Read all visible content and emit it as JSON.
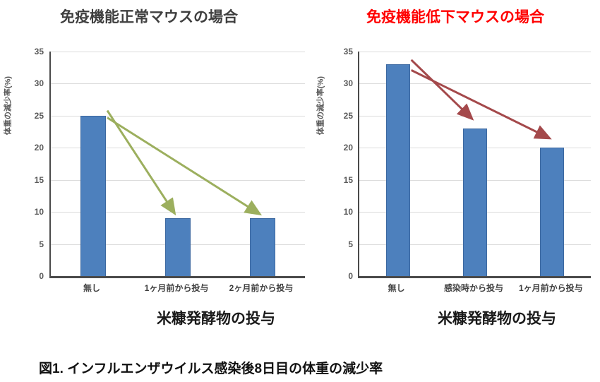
{
  "figure": {
    "caption": "図1. インフルエンザウイルス感染後8日目の体重の減少率"
  },
  "colors": {
    "bar": "#4D80BD",
    "grid": "#DCDCDC",
    "axis": "#4A4A4A",
    "tick_text": "#595959",
    "arrow_normal": "#9CAF5E",
    "arrow_low": "#A4494B",
    "title_normal": "#3F3F3F",
    "title_low": "#FF0000"
  },
  "chart_data": [
    {
      "type": "bar",
      "title": "免疫機能正常マウスの場合",
      "title_color": "#3F3F3F",
      "ylabel": "体重の減少率(%)",
      "xlabel": "米糠発酵物の投与",
      "categories": [
        "無し",
        "1ヶ月前から投与",
        "2ヶ月前から投与"
      ],
      "values": [
        25,
        9,
        9
      ],
      "ylim": [
        0,
        35
      ],
      "ytick_step": 5,
      "grid": true,
      "legend": "none",
      "bar_color": "#4D80BD",
      "arrow_color": "#9CAF5E",
      "arrows": [
        {
          "from_category": 0,
          "from_value": 25.8,
          "to_category": 1,
          "to_value": 10.0
        },
        {
          "from_category": 0,
          "from_value": 24.7,
          "to_category": 2,
          "to_value": 9.8
        }
      ]
    },
    {
      "type": "bar",
      "title": "免疫機能低下マウスの場合",
      "title_color": "#FF0000",
      "ylabel": "体重の減少率(%)",
      "xlabel": "米糠発酵物の投与",
      "categories": [
        "無し",
        "感染時から投与",
        "1ヶ月前から投与"
      ],
      "values": [
        33,
        23,
        20
      ],
      "ylim": [
        0,
        35
      ],
      "ytick_step": 5,
      "grid": true,
      "legend": "none",
      "bar_color": "#4D80BD",
      "arrow_color": "#A4494B",
      "arrows": [
        {
          "from_category": 0,
          "from_value": 33.7,
          "to_category": 1,
          "to_value": 24.7
        },
        {
          "from_category": 0,
          "from_value": 32.1,
          "to_category": 2,
          "to_value": 21.6
        }
      ]
    }
  ]
}
